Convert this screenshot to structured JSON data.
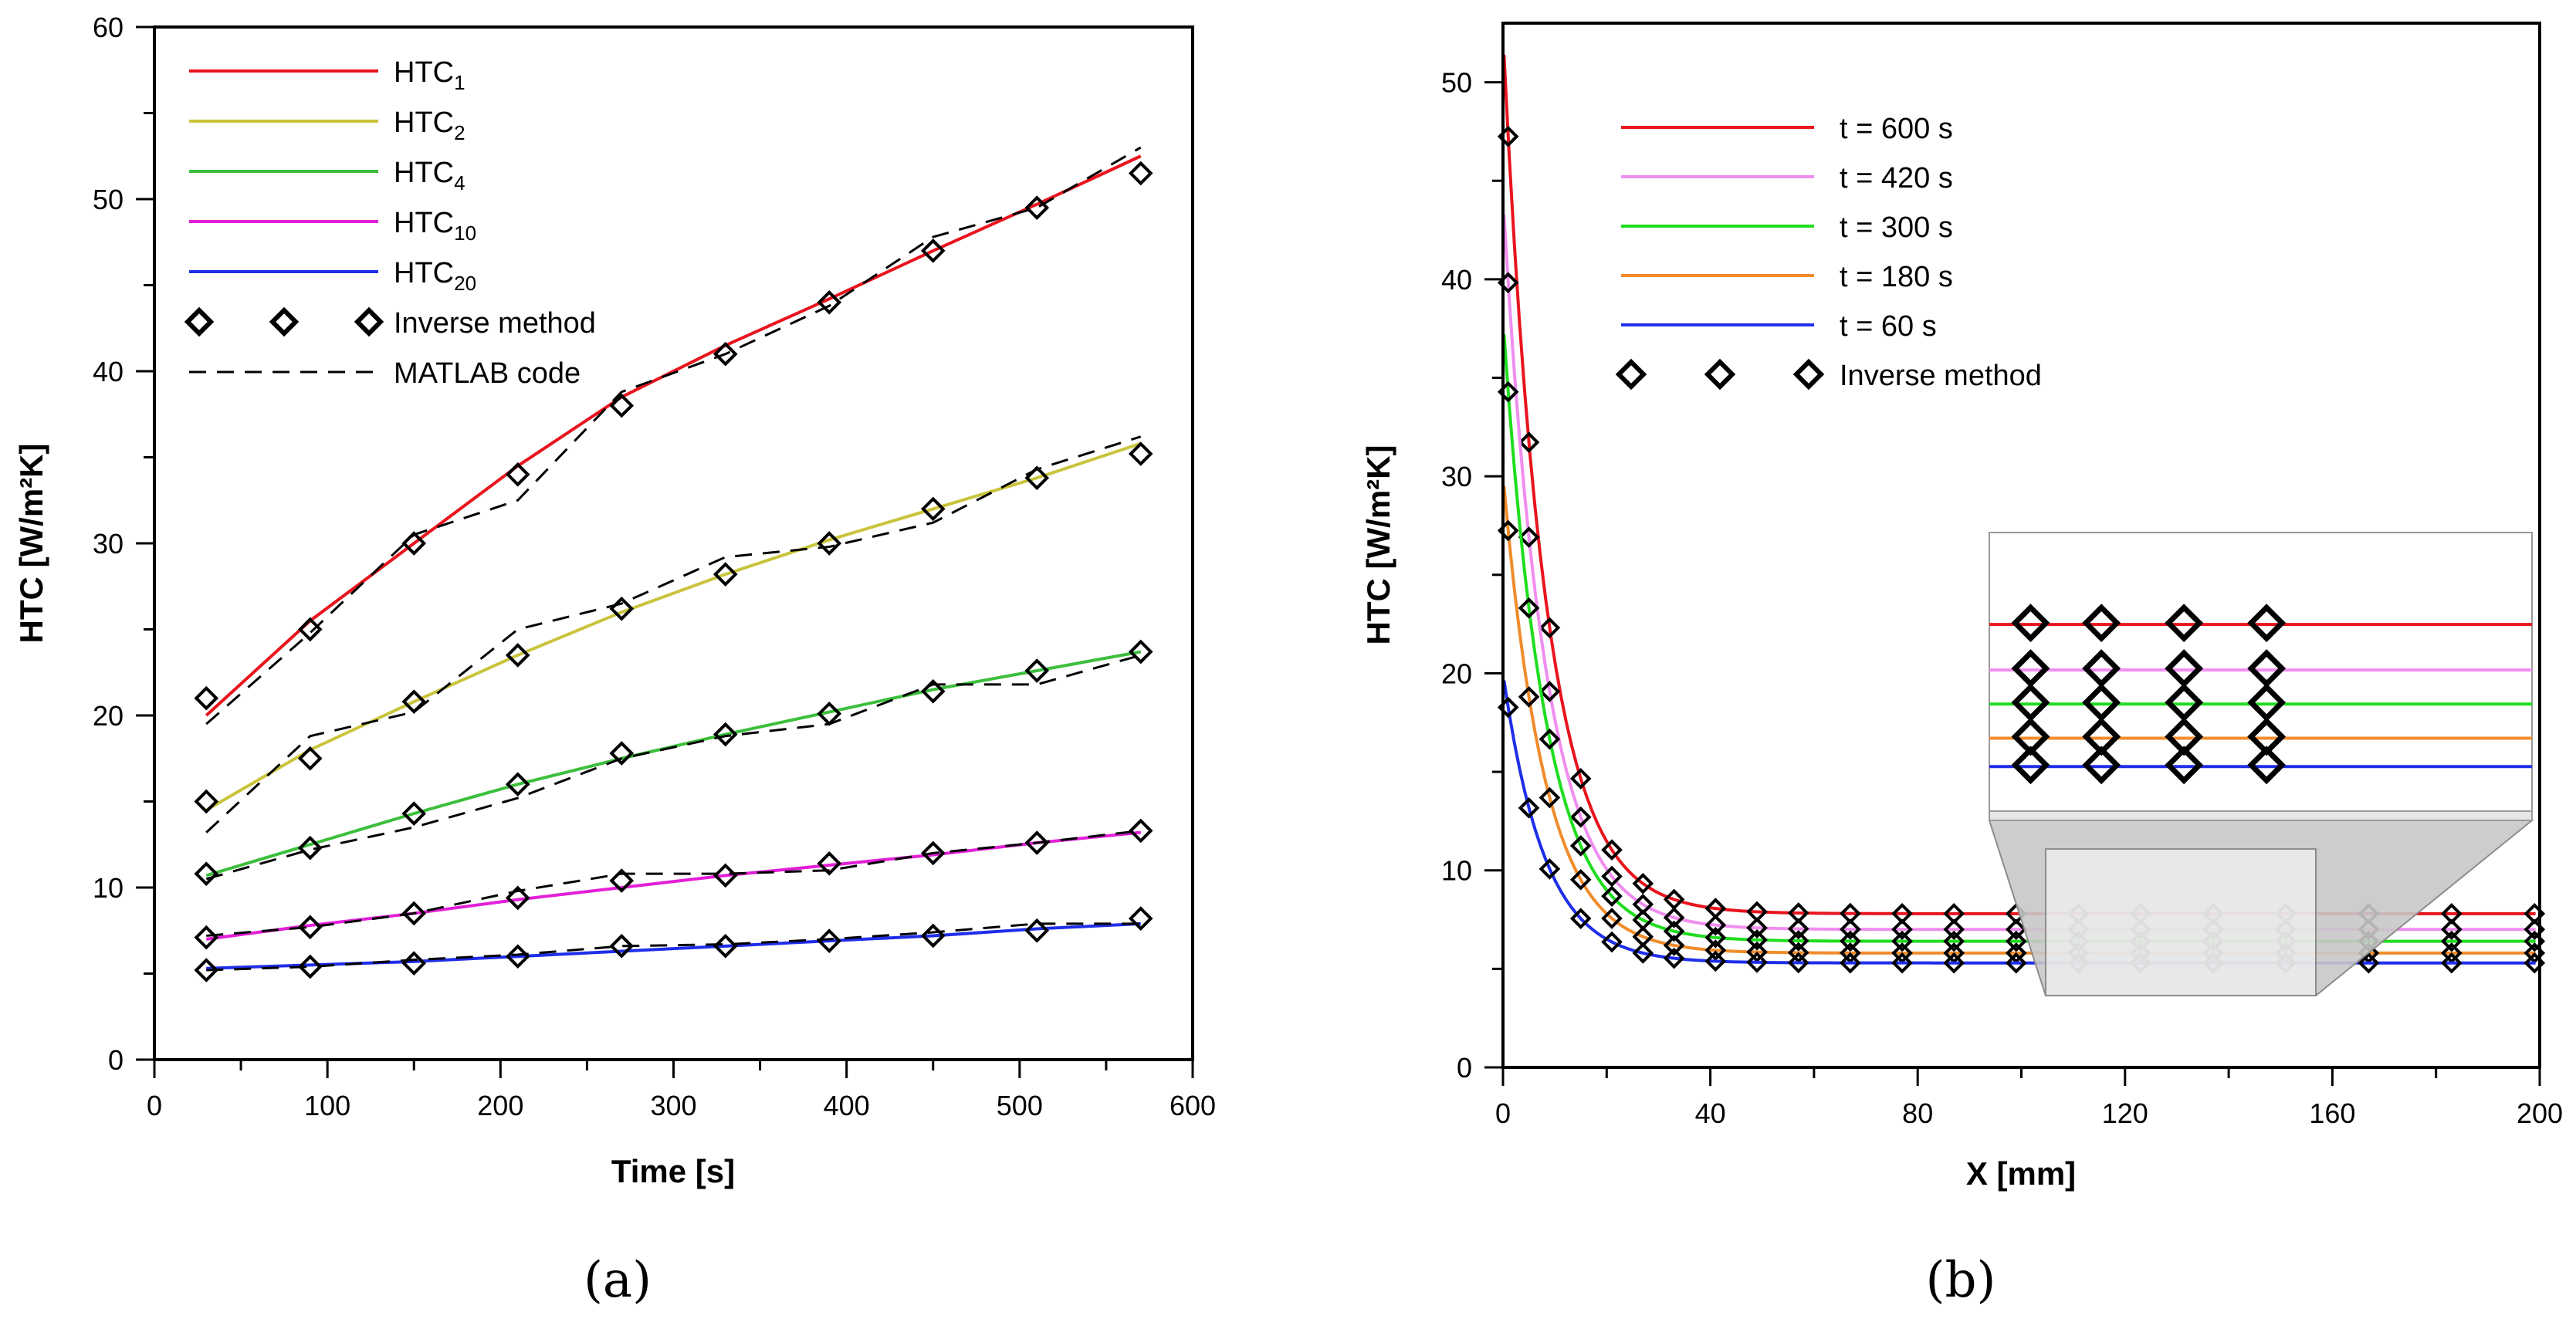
{
  "chart_data": [
    {
      "panel_label": "(a)",
      "type": "line",
      "xlabel": "Time [s]",
      "ylabel": "HTC [W/m²K]",
      "xlim": [
        0,
        600
      ],
      "ylim": [
        0,
        60
      ],
      "xticks": [
        "0",
        "100",
        "200",
        "300",
        "400",
        "500",
        "600"
      ],
      "yticks": [
        "0",
        "10",
        "20",
        "30",
        "40",
        "50",
        "60"
      ],
      "legend_placement": "top-left",
      "legend": [
        {
          "base": "HTC",
          "sub": "1",
          "color": "#e8141e"
        },
        {
          "base": "HTC",
          "sub": "2",
          "color": "#c9c43c"
        },
        {
          "base": "HTC",
          "sub": "4",
          "color": "#3cbf3c"
        },
        {
          "base": "HTC",
          "sub": "10",
          "color": "#e31fd8"
        },
        {
          "base": "HTC",
          "sub": "20",
          "color": "#1f2ee8"
        },
        {
          "label": "Inverse method",
          "marker": "diamond"
        },
        {
          "label": "MATLAB code",
          "style": "dashed"
        }
      ],
      "x": [
        30,
        90,
        150,
        210,
        270,
        330,
        390,
        450,
        510,
        570
      ],
      "series": [
        {
          "name": "HTC1",
          "color": "#e8141e",
          "line": [
            20,
            25.5,
            30,
            34.5,
            38.5,
            41.5,
            44.2,
            47,
            49.7,
            52.5
          ],
          "inverse": [
            21,
            25,
            30,
            34,
            38,
            41,
            44,
            47,
            49.5,
            51.5
          ],
          "matlab": [
            19.5,
            24.8,
            30.5,
            32.5,
            38.8,
            41,
            43.8,
            47.8,
            49.5,
            53
          ]
        },
        {
          "name": "HTC2",
          "color": "#c9c43c",
          "line": [
            14.5,
            18,
            20.8,
            23.5,
            26,
            28.2,
            30.2,
            32,
            33.8,
            35.8
          ],
          "inverse": [
            15,
            17.5,
            20.8,
            23.5,
            26.2,
            28.2,
            30,
            32,
            33.8,
            35.2
          ],
          "matlab": [
            13.2,
            18.8,
            20.2,
            25,
            26.5,
            29.2,
            29.8,
            31.2,
            34.3,
            36.2
          ]
        },
        {
          "name": "HTC4",
          "color": "#3cbf3c",
          "line": [
            10.7,
            12.5,
            14.3,
            16,
            17.5,
            18.9,
            20.2,
            21.5,
            22.6,
            23.7
          ],
          "inverse": [
            10.8,
            12.3,
            14.3,
            16,
            17.8,
            18.9,
            20.1,
            21.4,
            22.6,
            23.7
          ],
          "matlab": [
            10.5,
            12.2,
            13.5,
            15.2,
            17.5,
            18.8,
            19.5,
            21.8,
            21.8,
            23.5
          ]
        },
        {
          "name": "HTC10",
          "color": "#e31fd8",
          "line": [
            7,
            7.8,
            8.5,
            9.3,
            10,
            10.7,
            11.3,
            11.9,
            12.6,
            13.2
          ],
          "inverse": [
            7.1,
            7.7,
            8.5,
            9.4,
            10.4,
            10.7,
            11.4,
            12,
            12.6,
            13.3
          ],
          "matlab": [
            7.2,
            7.7,
            8.5,
            9.8,
            10.8,
            10.8,
            11,
            12,
            12.6,
            13.3
          ]
        },
        {
          "name": "HTC20",
          "color": "#1f2ee8",
          "line": [
            5.3,
            5.5,
            5.7,
            6,
            6.3,
            6.6,
            6.9,
            7.2,
            7.6,
            7.9
          ],
          "inverse": [
            5.2,
            5.4,
            5.6,
            6,
            6.6,
            6.6,
            6.9,
            7.2,
            7.5,
            8.2
          ],
          "matlab": [
            5.2,
            5.4,
            5.8,
            6.1,
            6.6,
            6.7,
            7,
            7.4,
            7.9,
            7.9
          ]
        }
      ]
    },
    {
      "panel_label": "(b)",
      "type": "line",
      "xlabel": "X [mm]",
      "ylabel": "HTC [W/m²K]",
      "xlim": [
        0,
        200
      ],
      "ylim": [
        0,
        53
      ],
      "xticks": [
        "0",
        "40",
        "80",
        "120",
        "160",
        "200"
      ],
      "yticks": [
        "0",
        "10",
        "20",
        "30",
        "40",
        "50"
      ],
      "legend_placement": "top-center",
      "legend": [
        {
          "label": "t = 600 s",
          "color": "#e8141e"
        },
        {
          "label": "t = 420 s",
          "color": "#f08ef0"
        },
        {
          "label": "t = 300 s",
          "color": "#1fdd1f"
        },
        {
          "label": "t = 180 s",
          "color": "#f08c2c"
        },
        {
          "label": "t = 60 s",
          "color": "#1f2ee8"
        },
        {
          "label": "Inverse method",
          "marker": "diamond"
        }
      ],
      "curves": [
        {
          "name": "t = 600 s",
          "color": "#e8141e",
          "base": 7.8,
          "amp": 44.7
        },
        {
          "name": "t = 420 s",
          "color": "#f08ef0",
          "base": 7.0,
          "amp": 37.2
        },
        {
          "name": "t = 300 s",
          "color": "#1fdd1f",
          "base": 6.4,
          "amp": 31.6
        },
        {
          "name": "t = 180 s",
          "color": "#f08c2c",
          "base": 5.8,
          "amp": 24.3
        },
        {
          "name": "t = 60 s",
          "color": "#1f2ee8",
          "base": 5.3,
          "amp": 14.7
        }
      ],
      "decay_scale_mm": 8,
      "inverse_x": [
        1,
        5,
        9,
        15,
        21,
        27,
        33,
        41,
        49,
        57,
        67,
        77,
        87,
        99,
        111,
        123,
        137,
        151,
        167,
        183,
        199
      ],
      "inset": {
        "label": "zoom",
        "xlim": [
          104,
          196
        ]
      }
    }
  ]
}
